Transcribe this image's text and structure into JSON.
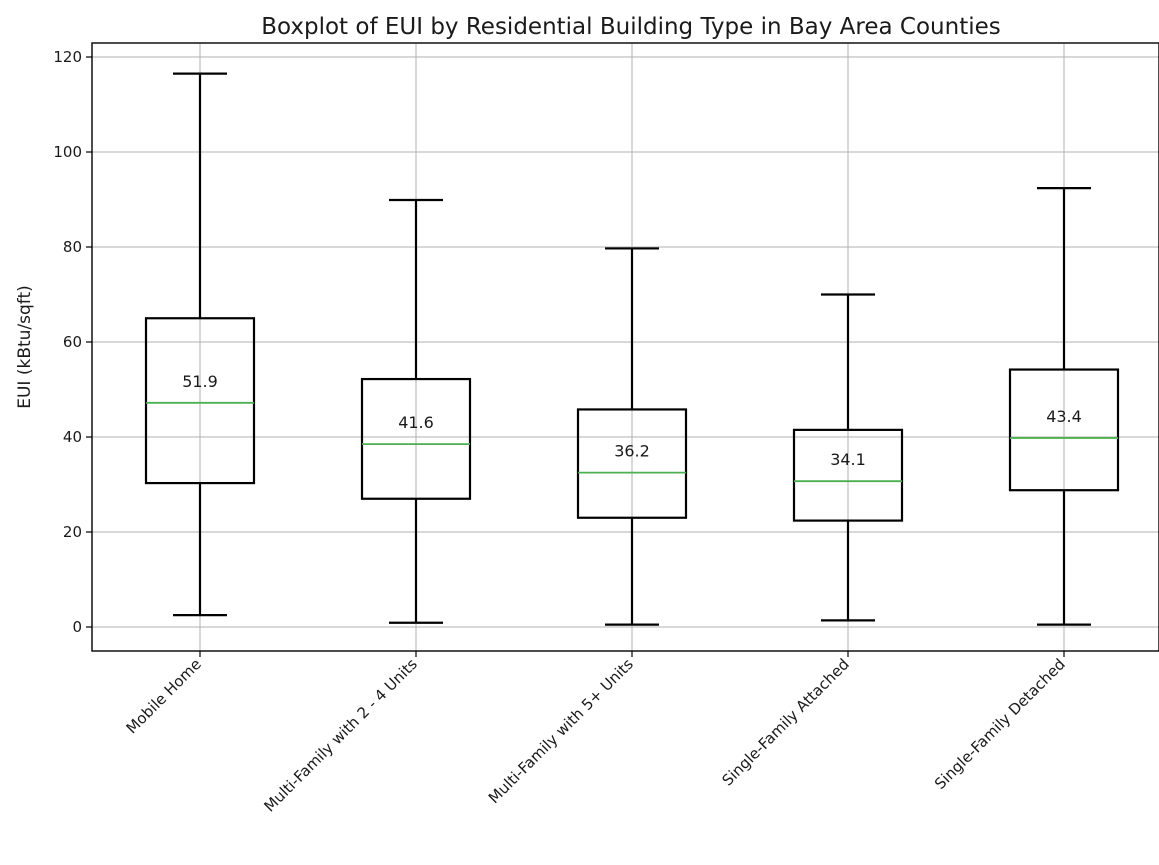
{
  "chart_data": {
    "type": "boxplot",
    "title": "Boxplot of EUI by Residential Building Type in Bay Area Counties",
    "xlabel": "",
    "ylabel": "EUI (kBtu/sqft)",
    "ylim": [
      -5,
      122
    ],
    "yticks": [
      0,
      20,
      40,
      60,
      80,
      100,
      120
    ],
    "grid": true,
    "categories": [
      "Mobile Home",
      "Multi-Family with 2 - 4 Units",
      "Multi-Family with 5+ Units",
      "Single-Family Attached",
      "Single-Family Detached"
    ],
    "boxes": [
      {
        "whisker_low": 2.5,
        "q1": 30.3,
        "median": 47.2,
        "q3": 65.0,
        "whisker_high": 116.5,
        "annotation": "51.9"
      },
      {
        "whisker_low": 0.9,
        "q1": 27.0,
        "median": 38.5,
        "q3": 52.2,
        "whisker_high": 89.9,
        "annotation": "41.6"
      },
      {
        "whisker_low": 0.5,
        "q1": 23.0,
        "median": 32.5,
        "q3": 45.8,
        "whisker_high": 79.7,
        "annotation": "36.2"
      },
      {
        "whisker_low": 1.4,
        "q1": 22.4,
        "median": 30.7,
        "q3": 41.5,
        "whisker_high": 70.0,
        "annotation": "34.1"
      },
      {
        "whisker_low": 0.5,
        "q1": 28.8,
        "median": 39.8,
        "q3": 54.2,
        "whisker_high": 92.4,
        "annotation": "43.4"
      }
    ],
    "colors": {
      "box": "#000000",
      "median": "#4caf50",
      "grid": "#b0b0b0",
      "axis": "#000000"
    }
  }
}
